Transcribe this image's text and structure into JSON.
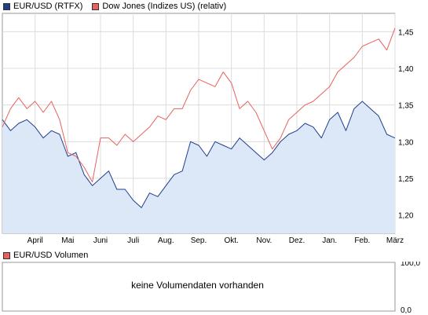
{
  "legend_top": [
    {
      "label": "EUR/USD (RTFX)",
      "color": "#1f3f8a"
    },
    {
      "label": "Dow Jones (Indizes US) (relativ)",
      "color": "#e86060"
    }
  ],
  "legend_bottom": {
    "label": "EUR/USD Volumen",
    "color": "#e86060"
  },
  "volume_panel": {
    "message": "keine Volumendaten vorhanden",
    "ytick_top": "100,0",
    "ytick_bottom": "0,0"
  },
  "chart_data": {
    "type": "line",
    "xlim": [
      0,
      12
    ],
    "ylim": [
      1.175,
      1.475
    ],
    "x_ticks": [
      {
        "x": 1,
        "label": "April"
      },
      {
        "x": 2,
        "label": "Mai"
      },
      {
        "x": 3,
        "label": "Juni"
      },
      {
        "x": 4,
        "label": "Juli"
      },
      {
        "x": 5,
        "label": "Aug."
      },
      {
        "x": 6,
        "label": "Sep."
      },
      {
        "x": 7,
        "label": "Okt."
      },
      {
        "x": 8,
        "label": "Nov."
      },
      {
        "x": 9,
        "label": "Dez."
      },
      {
        "x": 10,
        "label": "Jan."
      },
      {
        "x": 11,
        "label": "Feb."
      },
      {
        "x": 12,
        "label": "März"
      }
    ],
    "y_ticks": [
      {
        "y": 1.2,
        "label": "1,20"
      },
      {
        "y": 1.25,
        "label": "1,25"
      },
      {
        "y": 1.3,
        "label": "1,30"
      },
      {
        "y": 1.35,
        "label": "1,35"
      },
      {
        "y": 1.4,
        "label": "1,40"
      },
      {
        "y": 1.45,
        "label": "1,45"
      }
    ],
    "grid": true,
    "series": [
      {
        "name": "EUR/USD (RTFX)",
        "color": "#1f3f8a",
        "fill": "#dce7f8",
        "x": [
          0.0,
          0.25,
          0.5,
          0.75,
          1.0,
          1.25,
          1.5,
          1.75,
          2.0,
          2.25,
          2.5,
          2.75,
          3.0,
          3.25,
          3.5,
          3.75,
          4.0,
          4.25,
          4.5,
          4.75,
          5.0,
          5.25,
          5.5,
          5.75,
          6.0,
          6.25,
          6.5,
          6.75,
          7.0,
          7.25,
          7.5,
          7.75,
          8.0,
          8.25,
          8.5,
          8.75,
          9.0,
          9.25,
          9.5,
          9.75,
          10.0,
          10.25,
          10.5,
          10.75,
          11.0,
          11.25,
          11.5,
          11.75,
          12.0
        ],
        "y": [
          1.33,
          1.315,
          1.325,
          1.33,
          1.32,
          1.305,
          1.315,
          1.31,
          1.28,
          1.285,
          1.255,
          1.24,
          1.25,
          1.26,
          1.235,
          1.235,
          1.22,
          1.21,
          1.23,
          1.225,
          1.24,
          1.255,
          1.26,
          1.3,
          1.295,
          1.28,
          1.3,
          1.295,
          1.29,
          1.305,
          1.295,
          1.285,
          1.275,
          1.285,
          1.3,
          1.31,
          1.315,
          1.325,
          1.32,
          1.305,
          1.33,
          1.34,
          1.315,
          1.345,
          1.355,
          1.345,
          1.335,
          1.31,
          1.305
        ]
      },
      {
        "name": "Dow Jones (Indizes US) (relativ)",
        "color": "#e86060",
        "x": [
          0.0,
          0.25,
          0.5,
          0.75,
          1.0,
          1.25,
          1.5,
          1.75,
          2.0,
          2.25,
          2.5,
          2.75,
          3.0,
          3.25,
          3.5,
          3.75,
          4.0,
          4.25,
          4.5,
          4.75,
          5.0,
          5.25,
          5.5,
          5.75,
          6.0,
          6.25,
          6.5,
          6.75,
          7.0,
          7.25,
          7.5,
          7.75,
          8.0,
          8.25,
          8.5,
          8.75,
          9.0,
          9.25,
          9.5,
          9.75,
          10.0,
          10.25,
          10.5,
          10.75,
          11.0,
          11.25,
          11.5,
          11.75,
          12.0
        ],
        "y": [
          1.32,
          1.345,
          1.36,
          1.345,
          1.355,
          1.34,
          1.355,
          1.33,
          1.285,
          1.28,
          1.265,
          1.245,
          1.305,
          1.305,
          1.295,
          1.31,
          1.3,
          1.31,
          1.32,
          1.335,
          1.33,
          1.345,
          1.345,
          1.37,
          1.385,
          1.38,
          1.375,
          1.395,
          1.38,
          1.345,
          1.355,
          1.34,
          1.315,
          1.29,
          1.305,
          1.33,
          1.34,
          1.35,
          1.355,
          1.365,
          1.375,
          1.395,
          1.405,
          1.415,
          1.43,
          1.435,
          1.44,
          1.425,
          1.455
        ]
      }
    ]
  }
}
